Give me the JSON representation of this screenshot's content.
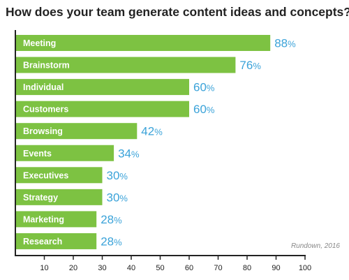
{
  "chart_data": {
    "type": "bar",
    "orientation": "horizontal",
    "title": "How does your team generate content ideas and concepts?",
    "categories": [
      "Meeting",
      "Brainstorm",
      "Individual",
      "Customers",
      "Browsing",
      "Events",
      "Executives",
      "Strategy",
      "Marketing",
      "Research"
    ],
    "values": [
      88,
      76,
      60,
      60,
      42,
      34,
      30,
      30,
      28,
      28
    ],
    "value_suffix": "%",
    "xlim": [
      0,
      100
    ],
    "xticks": [
      10,
      20,
      30,
      40,
      50,
      60,
      70,
      80,
      90,
      100
    ],
    "grid": false,
    "source": "Rundown, 2016",
    "colors": {
      "bar": "#7DC242",
      "value_text": "#3BA3D9",
      "axis": "#222222"
    }
  }
}
